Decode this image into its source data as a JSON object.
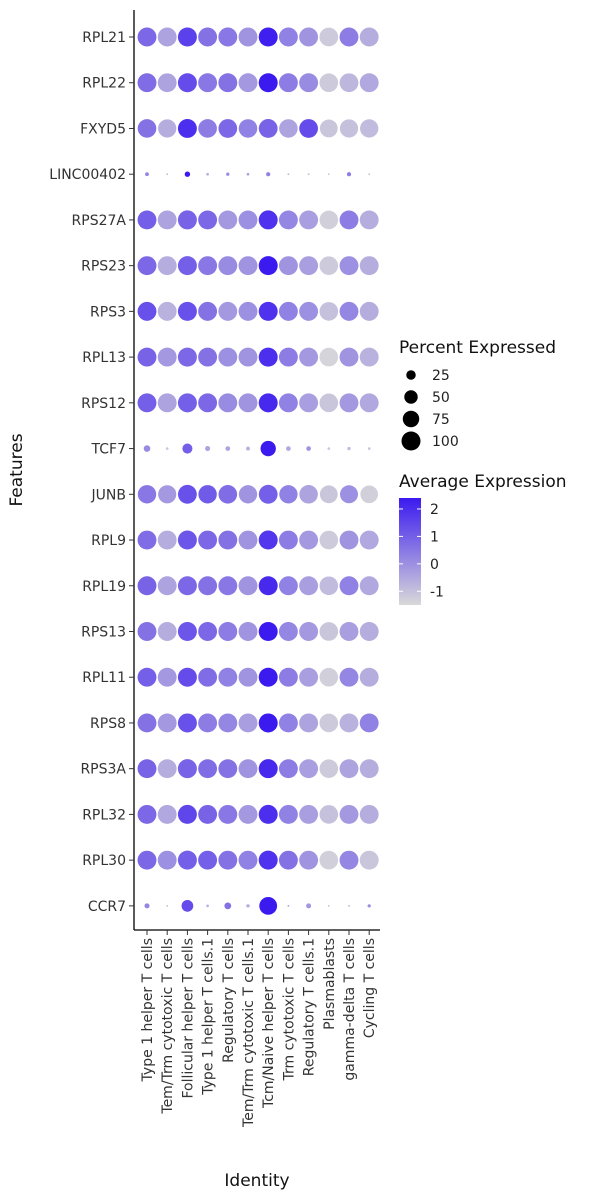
{
  "chart_data": {
    "type": "dotplot",
    "xlabel": "Identity",
    "ylabel": "Features",
    "categories": [
      "Type 1 helper T cells",
      "Tem/Trm cytotoxic T cells",
      "Follicular helper T cells",
      "Type 1 helper T cells.1",
      "Regulatory T cells",
      "Tem/Trm cytotoxic T cells.1",
      "Tcm/Naive helper T cells",
      "Trm cytotoxic T cells",
      "Regulatory T cells.1",
      "Plasmablasts",
      "gamma-delta T cells",
      "Cycling T cells"
    ],
    "features": [
      "RPL21",
      "RPL22",
      "FXYD5",
      "LINC00402",
      "RPS27A",
      "RPS23",
      "RPS3",
      "RPL13",
      "RPS12",
      "TCF7",
      "JUNB",
      "RPL9",
      "RPL19",
      "RPS13",
      "RPL11",
      "RPS8",
      "RPS3A",
      "RPL32",
      "RPL30",
      "CCR7"
    ],
    "percent_expressed": [
      [
        99,
        99,
        100,
        99,
        99,
        99,
        100,
        99,
        99,
        97,
        99,
        99
      ],
      [
        99,
        98,
        100,
        99,
        99,
        99,
        100,
        99,
        99,
        96,
        98,
        99
      ],
      [
        96,
        92,
        99,
        96,
        97,
        95,
        98,
        95,
        97,
        88,
        92,
        93
      ],
      [
        4,
        1,
        8,
        2,
        3,
        2,
        5,
        1,
        1,
        1,
        5,
        1
      ],
      [
        99,
        99,
        100,
        99,
        99,
        99,
        100,
        99,
        99,
        96,
        99,
        99
      ],
      [
        99,
        99,
        100,
        99,
        99,
        99,
        100,
        99,
        99,
        96,
        99,
        99
      ],
      [
        99,
        99,
        100,
        99,
        99,
        99,
        100,
        99,
        99,
        96,
        99,
        99
      ],
      [
        99,
        99,
        100,
        99,
        99,
        99,
        100,
        99,
        99,
        96,
        99,
        99
      ],
      [
        99,
        99,
        100,
        99,
        99,
        99,
        100,
        99,
        99,
        96,
        99,
        99
      ],
      [
        12,
        2,
        28,
        7,
        6,
        4,
        65,
        6,
        6,
        2,
        3,
        2
      ],
      [
        94,
        92,
        98,
        94,
        96,
        93,
        98,
        93,
        95,
        88,
        90,
        86
      ],
      [
        99,
        99,
        100,
        99,
        99,
        99,
        100,
        99,
        99,
        96,
        99,
        99
      ],
      [
        99,
        99,
        100,
        99,
        99,
        99,
        100,
        99,
        99,
        96,
        99,
        99
      ],
      [
        99,
        99,
        100,
        99,
        99,
        99,
        100,
        99,
        99,
        96,
        99,
        99
      ],
      [
        99,
        99,
        100,
        99,
        99,
        99,
        100,
        99,
        99,
        96,
        99,
        99
      ],
      [
        99,
        99,
        100,
        99,
        99,
        99,
        100,
        99,
        99,
        96,
        99,
        99
      ],
      [
        99,
        99,
        100,
        99,
        99,
        99,
        100,
        99,
        99,
        96,
        99,
        99
      ],
      [
        99,
        99,
        100,
        99,
        99,
        99,
        100,
        99,
        99,
        96,
        99,
        99
      ],
      [
        99,
        99,
        100,
        99,
        99,
        99,
        100,
        99,
        99,
        96,
        99,
        99
      ],
      [
        7,
        1,
        38,
        2,
        13,
        3,
        88,
        1,
        7,
        1,
        1,
        3
      ]
    ],
    "average_expression": [
      [
        0.8,
        -0.4,
        1.6,
        0.6,
        0.5,
        -0.1,
        2.3,
        0.3,
        -0.1,
        -1.2,
        0.4,
        -0.6
      ],
      [
        0.7,
        -0.4,
        1.4,
        0.5,
        0.6,
        -0.2,
        2.4,
        0.4,
        0.1,
        -1.2,
        -0.8,
        -0.5
      ],
      [
        0.6,
        -0.6,
        2.0,
        0.4,
        0.8,
        0.3,
        0.9,
        -0.4,
        1.4,
        -1.1,
        -1.0,
        -0.9
      ],
      [
        0.2,
        -1.0,
        2.5,
        -0.6,
        0.1,
        -0.3,
        0.3,
        -0.9,
        -1.0,
        -1.2,
        0.4,
        -1.2
      ],
      [
        1.0,
        -0.4,
        0.9,
        0.8,
        -0.2,
        0.0,
        1.9,
        0.2,
        -0.3,
        -1.3,
        0.4,
        -0.6
      ],
      [
        0.8,
        -0.6,
        1.0,
        0.5,
        0.1,
        -0.1,
        2.5,
        -0.1,
        -0.3,
        -1.2,
        0.0,
        -0.6
      ],
      [
        1.3,
        -0.7,
        1.3,
        0.6,
        -0.2,
        0.0,
        1.9,
        0.3,
        0.0,
        -1.0,
        0.2,
        -0.6
      ],
      [
        0.9,
        -0.2,
        0.8,
        0.6,
        0.0,
        -0.1,
        2.0,
        0.4,
        -0.2,
        -1.4,
        -0.1,
        -0.7
      ],
      [
        1.0,
        -0.4,
        1.0,
        0.8,
        0.1,
        -0.1,
        2.1,
        0.3,
        -0.3,
        -1.1,
        -0.2,
        -0.5
      ],
      [
        0.1,
        -1.1,
        1.0,
        -0.4,
        -0.4,
        -0.6,
        2.5,
        -0.5,
        -0.1,
        -1.1,
        -0.9,
        -1.1
      ],
      [
        0.5,
        -0.2,
        1.3,
        1.1,
        0.7,
        -0.1,
        1.0,
        0.3,
        -0.4,
        -1.1,
        0.0,
        -1.3
      ],
      [
        0.7,
        -0.6,
        1.2,
        0.8,
        0.6,
        -0.1,
        1.8,
        0.4,
        -0.2,
        -1.2,
        -0.1,
        -0.5
      ],
      [
        0.9,
        -0.4,
        0.8,
        0.6,
        0.5,
        -0.1,
        2.1,
        0.3,
        -0.3,
        -0.9,
        0.3,
        -0.5
      ],
      [
        0.6,
        -0.6,
        1.2,
        0.8,
        0.4,
        -0.1,
        2.5,
        0.2,
        -0.2,
        -1.1,
        -0.3,
        -0.6
      ],
      [
        1.0,
        -0.2,
        1.4,
        0.7,
        0.3,
        -0.1,
        2.4,
        0.4,
        -0.3,
        -1.3,
        0.2,
        -0.6
      ],
      [
        0.6,
        -0.2,
        1.3,
        0.4,
        0.2,
        -0.3,
        2.6,
        0.3,
        -0.4,
        -1.2,
        -0.7,
        0.3
      ],
      [
        0.9,
        -0.6,
        0.9,
        0.7,
        0.6,
        -0.1,
        2.1,
        0.4,
        -0.3,
        -1.2,
        -0.4,
        -0.6
      ],
      [
        0.8,
        -0.5,
        1.5,
        0.9,
        0.5,
        -0.2,
        2.0,
        0.3,
        -0.3,
        -1.0,
        -0.2,
        -0.6
      ],
      [
        0.8,
        0.0,
        1.0,
        1.0,
        0.6,
        0.3,
        1.9,
        0.6,
        -0.1,
        -1.3,
        0.2,
        -1.1
      ],
      [
        0.2,
        -1.1,
        1.4,
        -0.7,
        0.6,
        -0.5,
        2.7,
        -0.6,
        -0.2,
        -1.2,
        -1.0,
        0.0
      ]
    ],
    "size_legend": {
      "title": "Percent Expressed",
      "values": [
        25,
        50,
        75,
        100
      ],
      "labels": [
        "25",
        "50",
        "75",
        "100"
      ]
    },
    "color_legend": {
      "title": "Average Expression",
      "min": -1.5,
      "max": 2.4,
      "ticks": [
        2,
        1,
        0,
        -1
      ],
      "tick_labels": [
        "2",
        "1",
        "0",
        "-1"
      ],
      "low_color": "#d9d9d9",
      "high_color": "#3b1af0"
    },
    "grid": false
  }
}
